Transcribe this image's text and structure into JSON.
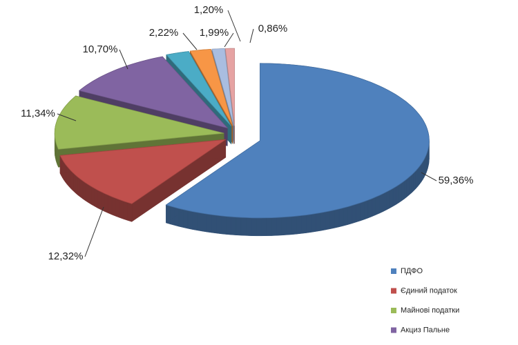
{
  "chart_data": {
    "type": "pie",
    "categories": [
      "ПДФО",
      "Єдиний податок",
      "Майнові податки",
      "Акциз Пальне",
      null,
      null,
      null,
      null
    ],
    "values": [
      59.36,
      12.32,
      11.34,
      10.7,
      2.22,
      1.99,
      1.2,
      0.86
    ],
    "value_labels": [
      "59,36%",
      "12,32%",
      "11,34%",
      "10,70%",
      "2,22%",
      "1,99%",
      "1,20%",
      "0,86%"
    ],
    "colors": [
      "#4f81bd",
      "#c0504d",
      "#9bbb59",
      "#8064a2",
      "#4bacc6",
      "#f79646",
      "#a9bde0",
      "#e6a3a3"
    ],
    "legend": "bottom-right"
  }
}
